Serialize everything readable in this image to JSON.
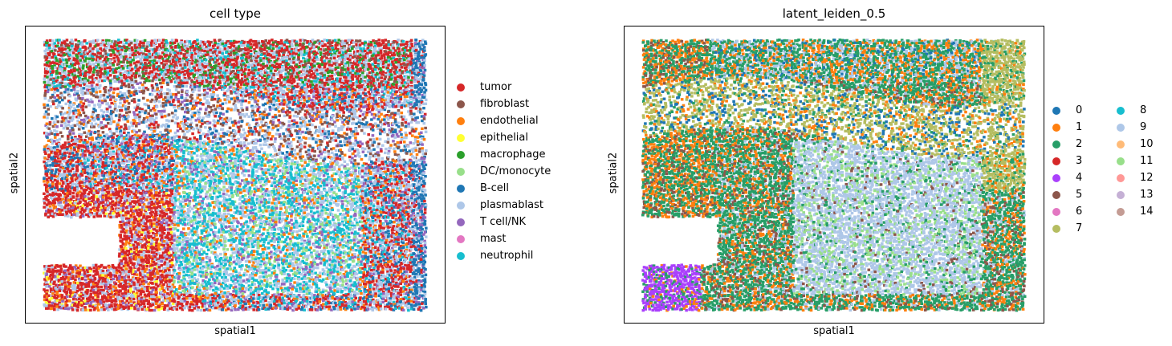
{
  "chart_data": [
    {
      "type": "scatter",
      "title": "cell type",
      "xlabel": "spatial1",
      "ylabel": "spatial2",
      "legend_position": "right",
      "legend_columns": 1,
      "categories": [
        {
          "name": "tumor",
          "color": "#d62728"
        },
        {
          "name": "fibroblast",
          "color": "#8c564b"
        },
        {
          "name": "endothelial",
          "color": "#ff7f0e"
        },
        {
          "name": "epithelial",
          "color": "#ffff33"
        },
        {
          "name": "macrophage",
          "color": "#2ca02c"
        },
        {
          "name": "DC/monocyte",
          "color": "#98df8a"
        },
        {
          "name": "B-cell",
          "color": "#1f77b4"
        },
        {
          "name": "plasmablast",
          "color": "#aec7e8"
        },
        {
          "name": "T cell/NK",
          "color": "#9467bd"
        },
        {
          "name": "mast",
          "color": "#e377c2"
        },
        {
          "name": "neutrophil",
          "color": "#17becf"
        }
      ]
    },
    {
      "type": "scatter",
      "title": "latent_leiden_0.5",
      "xlabel": "spatial1",
      "ylabel": "spatial2",
      "legend_position": "right",
      "legend_columns": 2,
      "categories": [
        {
          "name": "0",
          "color": "#1f77b4"
        },
        {
          "name": "1",
          "color": "#ff7f0e"
        },
        {
          "name": "2",
          "color": "#279e68"
        },
        {
          "name": "3",
          "color": "#d62728"
        },
        {
          "name": "4",
          "color": "#aa40fc"
        },
        {
          "name": "5",
          "color": "#8c564b"
        },
        {
          "name": "6",
          "color": "#e377c2"
        },
        {
          "name": "7",
          "color": "#b5bd61"
        },
        {
          "name": "8",
          "color": "#17becf"
        },
        {
          "name": "9",
          "color": "#aec7e8"
        },
        {
          "name": "10",
          "color": "#ffbb78"
        },
        {
          "name": "11",
          "color": "#98df8a"
        },
        {
          "name": "12",
          "color": "#ff9896"
        },
        {
          "name": "13",
          "color": "#c5b0d5"
        },
        {
          "name": "14",
          "color": "#c49c94"
        }
      ]
    }
  ]
}
